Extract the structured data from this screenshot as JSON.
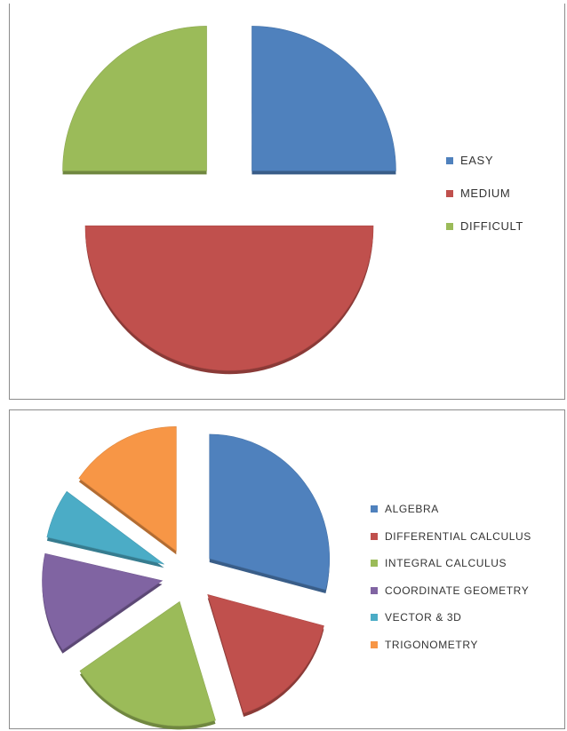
{
  "chart_data": [
    {
      "type": "pie",
      "title": "",
      "categories": [
        "EASY",
        "MEDIUM",
        "DIFFICULT"
      ],
      "values": [
        25,
        50,
        25
      ],
      "colors": [
        "#4f81bd",
        "#c0504d",
        "#9bbb59"
      ],
      "start_angle_deg": 0,
      "exploded": true,
      "style": "3d-tilted",
      "legend_position": "right"
    },
    {
      "type": "pie",
      "title": "",
      "categories": [
        "ALGEBRA",
        "DIFFERENTIAL CALCULUS",
        "INTEGRAL CALCULUS",
        "COORDINATE GEOMETRY",
        "VECTOR & 3D",
        "TRIGONOMETRY"
      ],
      "values": [
        27,
        15,
        19,
        12,
        6,
        14
      ],
      "colors": [
        "#4f81bd",
        "#c0504d",
        "#9bbb59",
        "#8064a2",
        "#4bacc6",
        "#f79646"
      ],
      "start_angle_deg": 0,
      "exploded": true,
      "style": "3d-tilted",
      "legend_position": "right"
    }
  ]
}
